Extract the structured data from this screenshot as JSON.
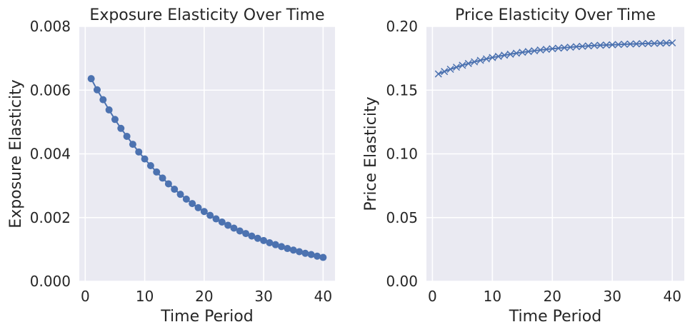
{
  "colors": {
    "background": "#eaeaf2",
    "grid": "#ffffff",
    "series": "#4c72b0",
    "text": "#262626"
  },
  "chart_data": [
    {
      "type": "line",
      "title": "Exposure Elasticity Over Time",
      "xlabel": "Time Period",
      "ylabel": "Exposure Elasticity",
      "marker": "circle",
      "grid": true,
      "xlim": [
        -1,
        42
      ],
      "ylim": [
        0,
        0.008
      ],
      "xticks": [
        0,
        10,
        20,
        30,
        40
      ],
      "xtick_labels": [
        "0",
        "10",
        "20",
        "30",
        "40"
      ],
      "yticks": [
        0,
        0.002,
        0.004,
        0.006,
        0.008
      ],
      "ytick_labels": [
        "0.000",
        "0.002",
        "0.004",
        "0.006",
        "0.008"
      ],
      "series": [
        {
          "x": [
            1,
            2,
            3,
            4,
            5,
            6,
            7,
            8,
            9,
            10,
            11,
            12,
            13,
            14,
            15,
            16,
            17,
            18,
            19,
            20,
            21,
            22,
            23,
            24,
            25,
            26,
            27,
            28,
            29,
            30,
            31,
            32,
            33,
            34,
            35,
            36,
            37,
            38,
            39,
            40
          ],
          "y": [
            0.00636,
            0.00601,
            0.0057,
            0.00538,
            0.00508,
            0.0048,
            0.00455,
            0.0043,
            0.00406,
            0.00384,
            0.00363,
            0.00343,
            0.00324,
            0.00306,
            0.00289,
            0.00273,
            0.00258,
            0.00244,
            0.00231,
            0.00219,
            0.00207,
            0.00196,
            0.00186,
            0.00176,
            0.00167,
            0.00158,
            0.0015,
            0.00142,
            0.00135,
            0.00128,
            0.00121,
            0.00115,
            0.00109,
            0.00103,
            0.00098,
            0.00093,
            0.00088,
            0.00084,
            0.00079,
            0.00075
          ]
        }
      ]
    },
    {
      "type": "line",
      "title": "Price Elasticity Over Time",
      "xlabel": "Time Period",
      "ylabel": "Price Elasticity",
      "marker": "x",
      "grid": true,
      "xlim": [
        -1,
        42
      ],
      "ylim": [
        0,
        0.2
      ],
      "xticks": [
        0,
        10,
        20,
        30,
        40
      ],
      "xtick_labels": [
        "0",
        "10",
        "20",
        "30",
        "40"
      ],
      "yticks": [
        0,
        0.05,
        0.1,
        0.15,
        0.2
      ],
      "ytick_labels": [
        "0.00",
        "0.05",
        "0.10",
        "0.15",
        "0.20"
      ],
      "series": [
        {
          "x": [
            1,
            2,
            3,
            4,
            5,
            6,
            7,
            8,
            9,
            10,
            11,
            12,
            13,
            14,
            15,
            16,
            17,
            18,
            19,
            20,
            21,
            22,
            23,
            24,
            25,
            26,
            27,
            28,
            29,
            30,
            31,
            32,
            33,
            34,
            35,
            36,
            37,
            38,
            39,
            40
          ],
          "y": [
            0.1627,
            0.1646,
            0.1664,
            0.168,
            0.1695,
            0.1709,
            0.1722,
            0.1734,
            0.1745,
            0.1756,
            0.1765,
            0.1774,
            0.1782,
            0.179,
            0.1797,
            0.1803,
            0.1809,
            0.1815,
            0.182,
            0.1825,
            0.1829,
            0.1833,
            0.1837,
            0.1841,
            0.1844,
            0.1847,
            0.185,
            0.1852,
            0.1854,
            0.1856,
            0.1858,
            0.186,
            0.1862,
            0.1863,
            0.1865,
            0.1866,
            0.1867,
            0.1868,
            0.187,
            0.1871
          ]
        }
      ]
    }
  ]
}
